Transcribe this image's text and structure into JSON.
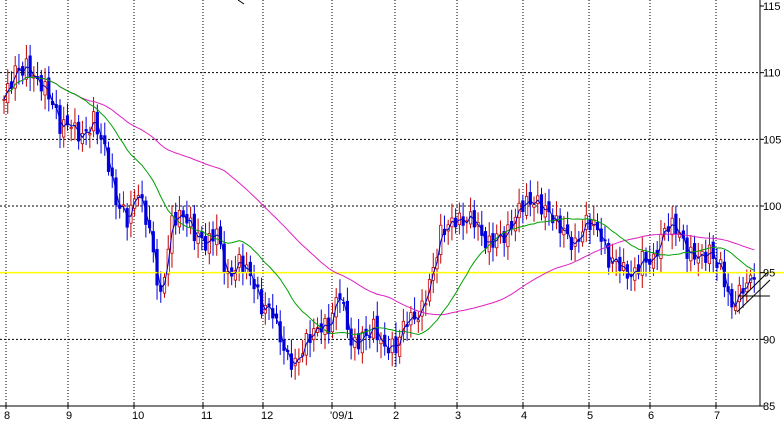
{
  "chart_data": {
    "type": "candlestick",
    "title": "",
    "xlabel": "",
    "ylabel": "",
    "ylim": [
      85,
      115
    ],
    "y_ticks": [
      "115",
      "110",
      "105",
      "100",
      "95",
      "90",
      "85"
    ],
    "x_ticks": [
      "8",
      "9",
      "10",
      "11",
      "12",
      "'09/1",
      "2",
      "3",
      "4",
      "5",
      "6",
      "7"
    ],
    "grid": true,
    "closes": [
      108,
      110,
      110.5,
      109.5,
      108.5,
      106,
      106,
      105,
      106.5,
      104.5,
      100.5,
      99,
      101,
      98,
      93,
      99,
      99.5,
      98,
      97,
      98,
      94.5,
      96,
      95,
      92.5,
      92,
      89,
      88,
      90,
      91,
      91,
      93.5,
      89.5,
      90,
      91,
      89.5,
      89.5,
      91.5,
      91.5,
      94,
      98,
      99,
      99,
      99,
      97,
      97.5,
      98,
      100,
      100.5,
      100,
      99,
      98,
      97,
      99,
      98.5,
      96,
      95.5,
      94.5,
      96,
      96,
      98.5,
      98.5,
      96.5,
      96,
      96.5,
      95.5,
      92.5,
      94,
      94.5
    ],
    "horizontal_line": 95,
    "colors": {
      "up_candle": "#c00000",
      "down_candle": "#0000e0",
      "short_ma": "#0000c0",
      "mid_ma": "#00a000",
      "long_ma": "#e020c0",
      "support_line": "#ffff00",
      "grid": "#000000"
    }
  }
}
